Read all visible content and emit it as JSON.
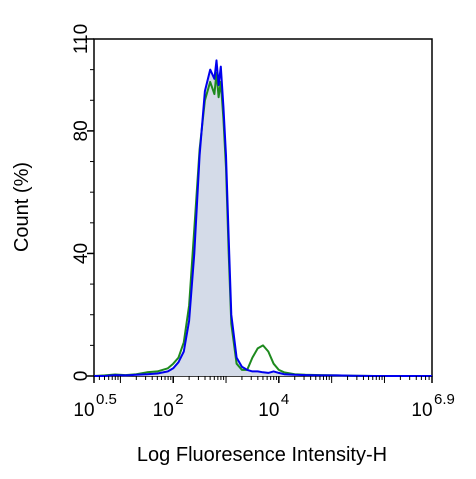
{
  "chart_data": {
    "type": "area",
    "title": "",
    "xlabel": "Log Fluoresence Intensity-H",
    "ylabel": "Count  (%)",
    "x_scale": "log10",
    "xlim": [
      0.5,
      6.9
    ],
    "ylim": [
      0,
      110
    ],
    "y_ticks": [
      {
        "value": 0,
        "label": "0"
      },
      {
        "value": 40,
        "label": "40"
      },
      {
        "value": 80,
        "label": "80"
      },
      {
        "value": 110,
        "label": "110"
      }
    ],
    "x_ticks": [
      {
        "exponent": 0.5,
        "base": "10",
        "sup": "0.5"
      },
      {
        "exponent": 2,
        "base": "10",
        "sup": "2"
      },
      {
        "exponent": 4,
        "base": "10",
        "sup": "4"
      },
      {
        "exponent": 6.9,
        "base": "10",
        "sup": "6.9"
      }
    ],
    "grid": false,
    "legend": "none",
    "series": [
      {
        "color": "#0000ee",
        "fill": "#d4dbe8",
        "style": "filled",
        "x": [
          0.5,
          0.7,
          0.9,
          1.1,
          1.3,
          1.5,
          1.7,
          1.9,
          2.0,
          2.1,
          2.2,
          2.3,
          2.4,
          2.5,
          2.6,
          2.7,
          2.78,
          2.82,
          2.86,
          2.9,
          2.95,
          3.0,
          3.05,
          3.1,
          3.2,
          3.3,
          3.4,
          3.5,
          3.6,
          3.7,
          3.8,
          3.9,
          4.0,
          4.1,
          4.3,
          4.5,
          4.8,
          5.1,
          5.4,
          5.8,
          6.2,
          6.5,
          6.9
        ],
        "y": [
          0,
          0,
          0.3,
          0.2,
          0.4,
          0.6,
          0.8,
          1.5,
          2.5,
          4.5,
          8,
          18,
          40,
          72,
          93,
          100,
          97,
          103,
          95,
          101,
          88,
          72,
          45,
          20,
          6,
          3,
          2,
          1.5,
          1.5,
          1.2,
          1,
          1.5,
          1,
          0.6,
          0.4,
          0.3,
          0.2,
          0.2,
          0.1,
          0,
          0,
          0,
          0
        ]
      },
      {
        "color": "#1e8a1e",
        "style": "line",
        "x": [
          0.5,
          0.7,
          0.9,
          1.1,
          1.3,
          1.5,
          1.7,
          1.9,
          2.0,
          2.1,
          2.2,
          2.3,
          2.4,
          2.5,
          2.6,
          2.7,
          2.78,
          2.82,
          2.86,
          2.9,
          2.95,
          3.0,
          3.05,
          3.1,
          3.2,
          3.3,
          3.4,
          3.5,
          3.6,
          3.7,
          3.8,
          3.9,
          4.0,
          4.1,
          4.3,
          4.5,
          4.8,
          5.1,
          5.4,
          5.8,
          6.2,
          6.5,
          6.9
        ],
        "y": [
          0,
          0.2,
          0.5,
          0.3,
          0.6,
          1.2,
          1.5,
          2.5,
          4,
          6,
          11,
          23,
          48,
          74,
          90,
          96,
          92,
          99,
          91,
          96,
          84,
          68,
          40,
          17,
          4,
          2,
          2,
          6,
          9,
          10,
          8,
          4,
          2,
          1.2,
          0.6,
          0.4,
          0.3,
          0.2,
          0.1,
          0,
          0,
          0,
          0
        ]
      }
    ]
  }
}
